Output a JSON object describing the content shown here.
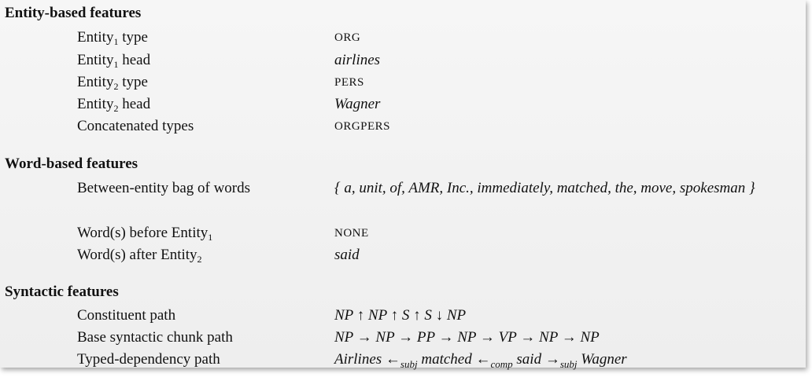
{
  "sections": [
    {
      "title": "Entity-based features",
      "rows": [
        {
          "label": "Entity",
          "label_sub": "1",
          "label_suffix": " type",
          "value": "ORG"
        },
        {
          "label": "Entity",
          "label_sub": "1",
          "label_suffix": " head",
          "value": "airlines"
        },
        {
          "label": "Entity",
          "label_sub": "2",
          "label_suffix": " type",
          "value": "PERS"
        },
        {
          "label": "Entity",
          "label_sub": "2",
          "label_suffix": " head",
          "value": "Wagner"
        },
        {
          "label": "Concatenated types",
          "value": "ORGPERS"
        }
      ]
    },
    {
      "title": "Word-based features",
      "rows": [
        {
          "label": "Between-entity bag of words",
          "value": "{ a, unit, of, AMR, Inc., immediately, matched, the, move, spokesman }"
        },
        {
          "label": "Word(s) before Entity",
          "label_sub": "1",
          "value": "NONE"
        },
        {
          "label": "Word(s) after Entity",
          "label_sub": "2",
          "value": "said"
        }
      ]
    },
    {
      "title": "Syntactic features",
      "rows": [
        {
          "label": "Constituent path",
          "value": "NP ↑ NP ↑ S ↑ S ↓ NP"
        },
        {
          "label": "Base syntactic chunk path",
          "value": "NP → NP → PP → NP → VP → NP → NP"
        },
        {
          "label": "Typed-dependency path",
          "value_parts": [
            "Airlines ←",
            "subj",
            " matched ←",
            "comp",
            " said →",
            "subj",
            " Wagner"
          ]
        }
      ]
    }
  ]
}
